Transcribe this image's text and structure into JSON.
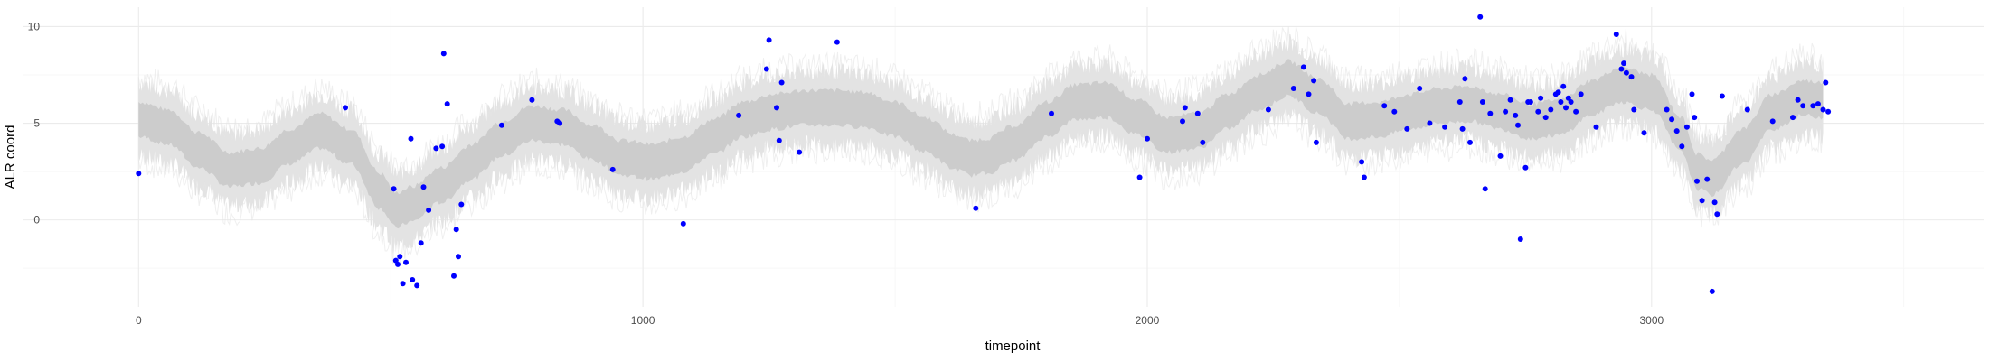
{
  "chart_data": {
    "type": "scatter",
    "xlabel": "timepoint",
    "ylabel": "ALR coord",
    "xlim": [
      -230,
      3660
    ],
    "ylim": [
      -4.5,
      11
    ],
    "x_ticks": [
      0,
      1000,
      2000,
      3000
    ],
    "y_ticks": [
      0,
      5,
      10
    ],
    "grid": true,
    "legend": "none",
    "colors": {
      "points": "#0000ff",
      "band_outer": "#e3e3e3",
      "band_inner": "#cccccc",
      "grid": "#ebebeb"
    },
    "series": [
      {
        "type": "ribbon",
        "x": [
          0,
          60,
          120,
          180,
          240,
          300,
          360,
          420,
          480,
          510,
          540,
          600,
          660,
          720,
          780,
          840,
          900,
          960,
          1020,
          1080,
          1140,
          1200,
          1260,
          1320,
          1380,
          1440,
          1500,
          1560,
          1620,
          1650,
          1680,
          1740,
          1800,
          1860,
          1920,
          1980,
          2040,
          2100,
          2160,
          2220,
          2280,
          2340,
          2400,
          2460,
          2520,
          2580,
          2640,
          2700,
          2760,
          2820,
          2880,
          2940,
          3000,
          3060,
          3090,
          3120,
          3180,
          3240,
          3300,
          3340
        ],
        "center": [
          5.2,
          4.8,
          3.6,
          2.6,
          2.8,
          3.8,
          4.6,
          3.8,
          1.5,
          0.5,
          0.8,
          1.8,
          3.0,
          4.2,
          5.0,
          4.8,
          4.0,
          3.2,
          3.0,
          3.4,
          4.3,
          5.2,
          5.6,
          5.8,
          5.8,
          5.7,
          5.2,
          4.4,
          3.5,
          3.2,
          3.3,
          4.0,
          5.2,
          6.1,
          6.2,
          5.3,
          4.4,
          4.6,
          5.6,
          6.6,
          7.3,
          6.4,
          5.1,
          5.2,
          5.6,
          5.9,
          6.0,
          5.6,
          5.1,
          5.3,
          6.3,
          7.0,
          6.6,
          4.4,
          2.5,
          2.2,
          3.8,
          5.6,
          6.3,
          6.2
        ],
        "inner_half_width": 0.9,
        "outer_half_width": 1.9
      }
    ],
    "points": {
      "x": [
        0,
        410,
        506,
        510,
        514,
        518,
        524,
        530,
        540,
        543,
        552,
        560,
        565,
        575,
        590,
        602,
        605,
        612,
        625,
        630,
        634,
        640,
        720,
        780,
        830,
        835,
        940,
        1080,
        1190,
        1245,
        1250,
        1265,
        1270,
        1275,
        1310,
        1385,
        1660,
        1810,
        1985,
        2000,
        2070,
        2075,
        2100,
        2110,
        2240,
        2290,
        2310,
        2320,
        2330,
        2335,
        2425,
        2430,
        2470,
        2490,
        2515,
        2540,
        2560,
        2590,
        2620,
        2625,
        2630,
        2640,
        2660,
        2665,
        2670,
        2680,
        2700,
        2710,
        2720,
        2730,
        2735,
        2740,
        2750,
        2755,
        2760,
        2775,
        2780,
        2790,
        2800,
        2810,
        2815,
        2820,
        2825,
        2830,
        2835,
        2840,
        2850,
        2860,
        2890,
        2930,
        2940,
        2945,
        2950,
        2960,
        2965,
        2985,
        3030,
        3040,
        3050,
        3060,
        3070,
        3080,
        3085,
        3090,
        3100,
        3110,
        3120,
        3125,
        3130,
        3140,
        3190,
        3240,
        3280,
        3290,
        3300,
        3320,
        3330,
        3340,
        3345,
        3350
      ],
      "y": [
        2.4,
        5.8,
        1.6,
        -2.1,
        -2.3,
        -1.9,
        -3.3,
        -2.2,
        4.2,
        -3.1,
        -3.4,
        -1.2,
        1.7,
        0.5,
        3.7,
        3.8,
        8.6,
        6.0,
        -2.9,
        -0.5,
        -1.9,
        0.8,
        4.9,
        6.2,
        5.1,
        5.0,
        2.6,
        -0.2,
        5.4,
        7.8,
        9.3,
        5.8,
        4.1,
        7.1,
        3.5,
        9.2,
        0.6,
        5.5,
        2.2,
        4.2,
        5.1,
        5.8,
        5.5,
        4.0,
        5.7,
        6.8,
        7.9,
        6.5,
        7.2,
        4.0,
        3.0,
        2.2,
        5.9,
        5.6,
        4.7,
        6.8,
        5.0,
        4.8,
        6.1,
        4.7,
        7.3,
        4.0,
        10.5,
        6.1,
        1.6,
        5.5,
        3.3,
        5.6,
        6.2,
        5.4,
        4.9,
        -1.0,
        2.7,
        6.1,
        6.1,
        5.6,
        6.3,
        5.3,
        5.7,
        6.5,
        6.6,
        6.1,
        6.9,
        5.8,
        6.3,
        6.1,
        5.6,
        6.5,
        4.8,
        9.6,
        7.8,
        8.1,
        7.6,
        7.4,
        5.7,
        4.5,
        5.7,
        5.2,
        4.6,
        3.8,
        4.8,
        6.5,
        5.3,
        2.0,
        1.0,
        2.1,
        -3.7,
        0.9,
        0.3,
        6.4,
        5.7,
        5.1,
        5.3,
        6.2,
        5.9,
        5.9,
        6.0,
        5.7,
        7.1,
        5.6
      ]
    }
  }
}
